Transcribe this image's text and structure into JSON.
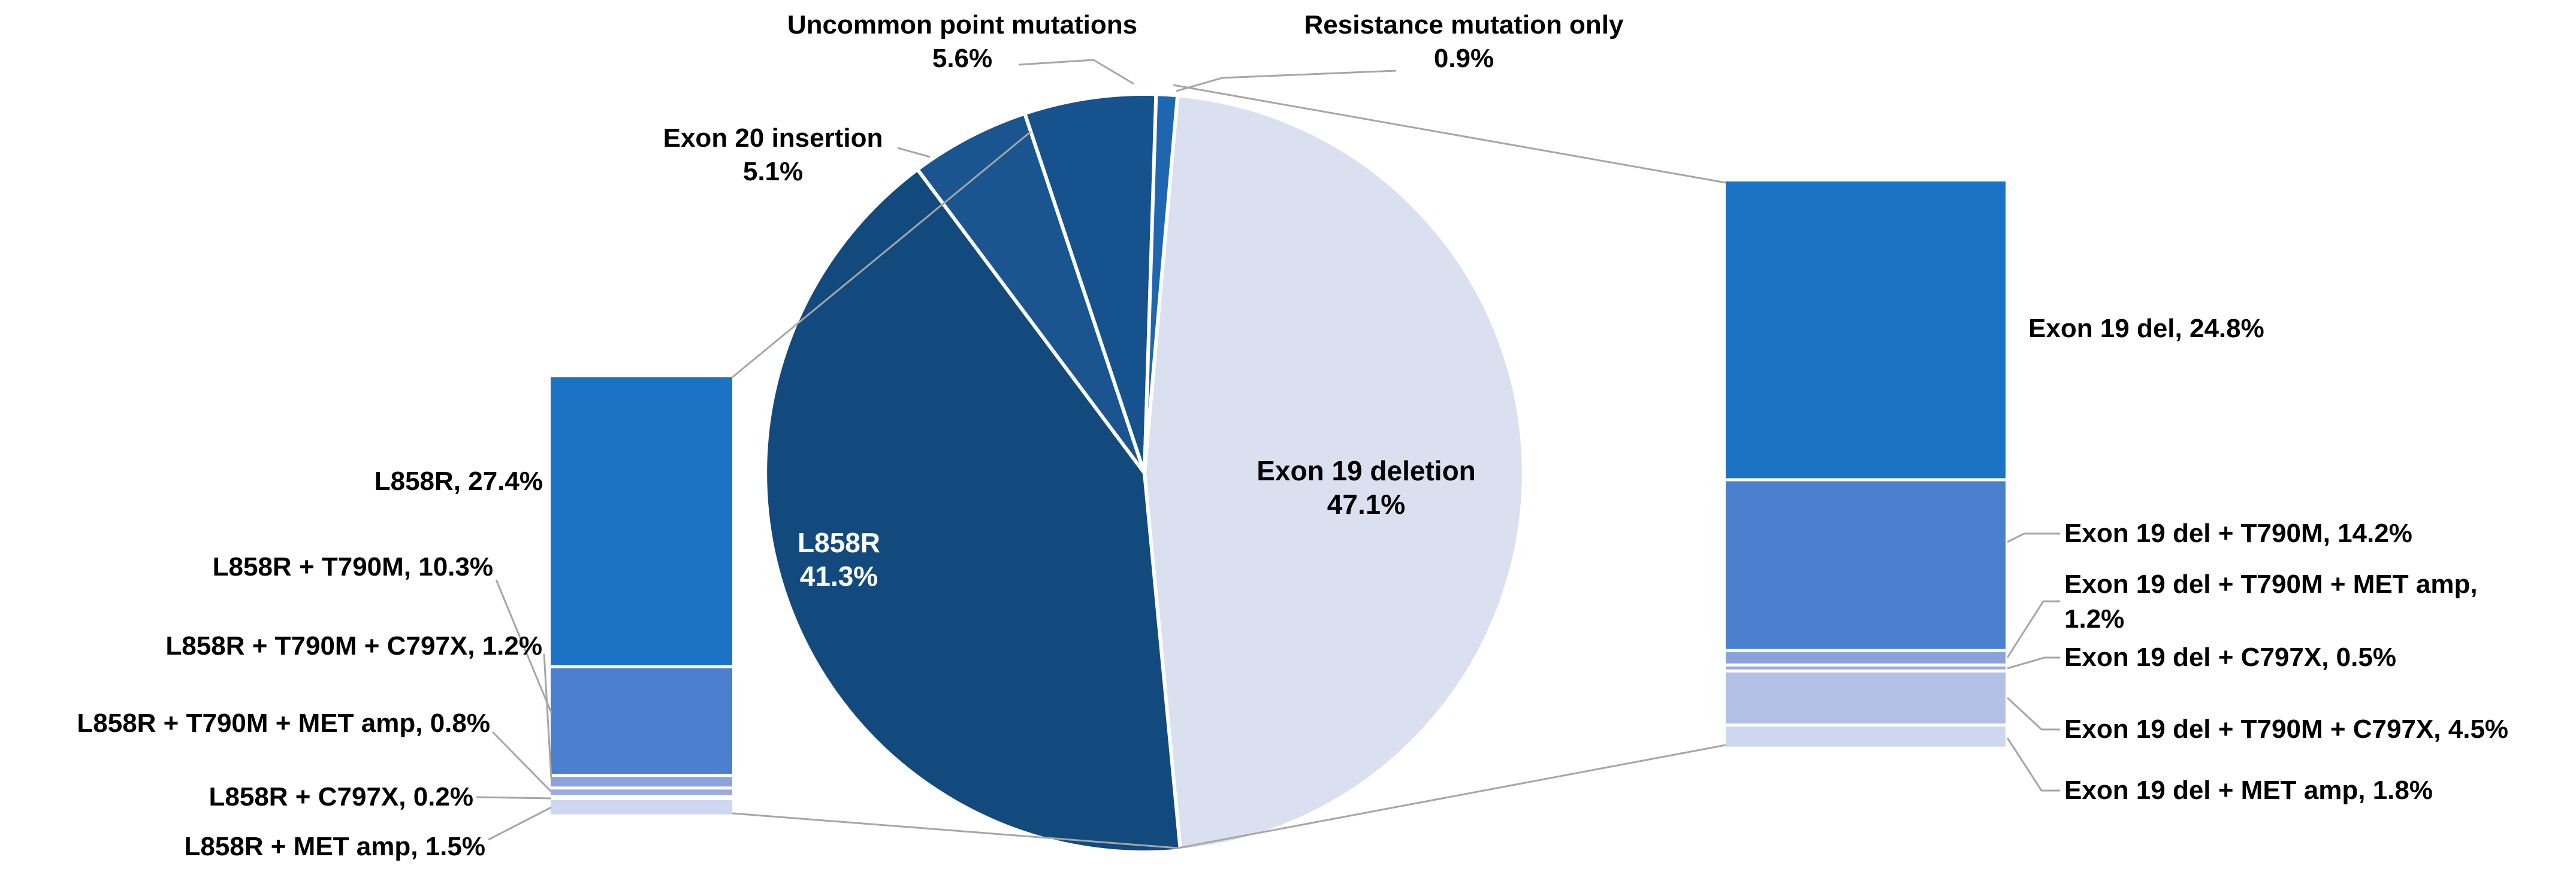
{
  "chart_data": {
    "type": "pie",
    "variant": "bar-of-pie-both-sides",
    "title": "",
    "pie": {
      "slices": [
        {
          "label": "Exon 19 deletion",
          "value": 47.1,
          "color": "#DAE0EF"
        },
        {
          "label": "L858R",
          "value": 41.3,
          "color": "#134A7E"
        },
        {
          "label": "Exon 20 insertion",
          "value": 5.1,
          "color": "#1A5590"
        },
        {
          "label": "Uncommon point mutations",
          "value": 5.6,
          "color": "#16528D"
        },
        {
          "label": "Resistance mutation only",
          "value": 0.9,
          "color": "#1F66B0"
        }
      ],
      "start_at_12_oclock_offset_deg": 5,
      "clockwise": true
    },
    "left_bar": {
      "parent_slice": "L858R",
      "total": 41.3,
      "segments": [
        {
          "label": "L858R",
          "value": 27.4,
          "color": "#1B73C6"
        },
        {
          "label": "L858R + T790M",
          "value": 10.3,
          "color": "#4A80CD"
        },
        {
          "label": "L858R + T790M + C797X",
          "value": 1.2,
          "color": "#8BA2DA"
        },
        {
          "label": "L858R + T790M + MET amp",
          "value": 0.8,
          "color": "#9AACE0"
        },
        {
          "label": "L858R + C797X",
          "value": 0.2,
          "color": "#B3C1E6"
        },
        {
          "label": "L858R + MET amp",
          "value": 1.5,
          "color": "#CDD7EF"
        }
      ]
    },
    "right_bar": {
      "parent_slice": "Exon 19 deletion",
      "total": 47.1,
      "segments": [
        {
          "label": "Exon 19 del",
          "value": 24.8,
          "color": "#1B73C6"
        },
        {
          "label": "Exon 19 del + T790M",
          "value": 14.2,
          "color": "#4A80CD"
        },
        {
          "label": "Exon 19 del + T790M + MET amp",
          "value": 1.2,
          "color": "#8BA2DA"
        },
        {
          "label": "Exon 19 del + C797X",
          "value": 0.5,
          "color": "#9AACE0"
        },
        {
          "label": "Exon 19 del + T790M + C797X",
          "value": 4.5,
          "color": "#B3C1E6"
        },
        {
          "label": "Exon 19 del + MET amp",
          "value": 1.8,
          "color": "#CDD7EF"
        }
      ]
    },
    "legend": "none",
    "grid": "off"
  },
  "labels": {
    "callouts": {
      "uncommon": {
        "lines": [
          "Uncommon point mutations",
          "5.6%"
        ]
      },
      "resistance": {
        "lines": [
          "Resistance mutation only",
          "0.9%"
        ]
      },
      "exon20": {
        "lines": [
          "Exon 20 insertion",
          "5.1%"
        ]
      }
    },
    "pie_inner": {
      "l858r": {
        "lines": [
          "L858R",
          "41.3%"
        ]
      },
      "exon19": {
        "lines": [
          "Exon 19 deletion",
          "47.1%"
        ]
      }
    },
    "left": [
      "L858R, 27.4%",
      "L858R + T790M, 10.3%",
      "L858R + T790M + C797X, 1.2%",
      "L858R + T790M + MET amp, 0.8%",
      "L858R + C797X, 0.2%",
      "L858R + MET amp, 1.5%"
    ],
    "right": [
      "Exon 19 del, 24.8%",
      "Exon 19 del + T790M, 14.2%",
      "Exon 19 del + T790M + MET amp,",
      "1.2%",
      "Exon 19 del + C797X, 0.5%",
      "Exon 19 del + T790M + C797X, 4.5%",
      "Exon 19 del + MET amp, 1.8%"
    ]
  },
  "colors": {
    "background": "#FFFFFF",
    "leader_line": "#A6A6A6",
    "separator": "#FFFFFF",
    "text": "#000000",
    "pie_inner_light_text": "#FFFFFF"
  }
}
